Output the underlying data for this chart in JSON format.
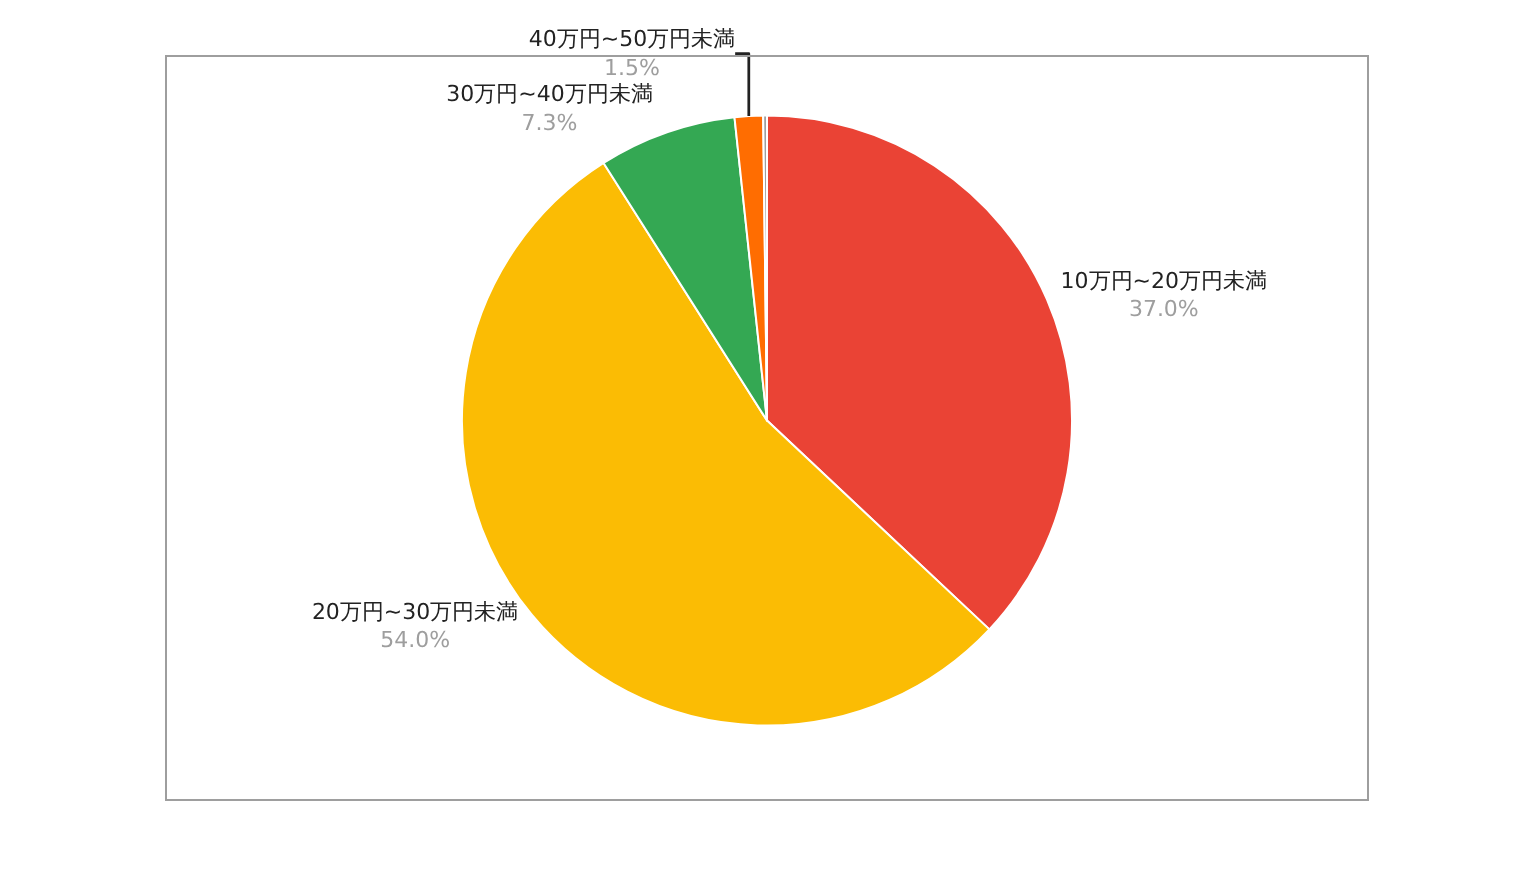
{
  "chart_data": {
    "type": "pie",
    "categories": [
      "10万円~20万円未満",
      "20万円~30万円未満",
      "30万円~40万円未満",
      "40万円~50万円未満",
      null
    ],
    "values": [
      37.0,
      54.0,
      7.3,
      1.5,
      0.2
    ],
    "value_labels": [
      "37.0%",
      "54.0%",
      "7.3%",
      "1.5%",
      null
    ],
    "colors": [
      "#ea4335",
      "#fbbc04",
      "#34a853",
      "#ff6d01",
      "#9e9e9e"
    ],
    "legend": false
  }
}
